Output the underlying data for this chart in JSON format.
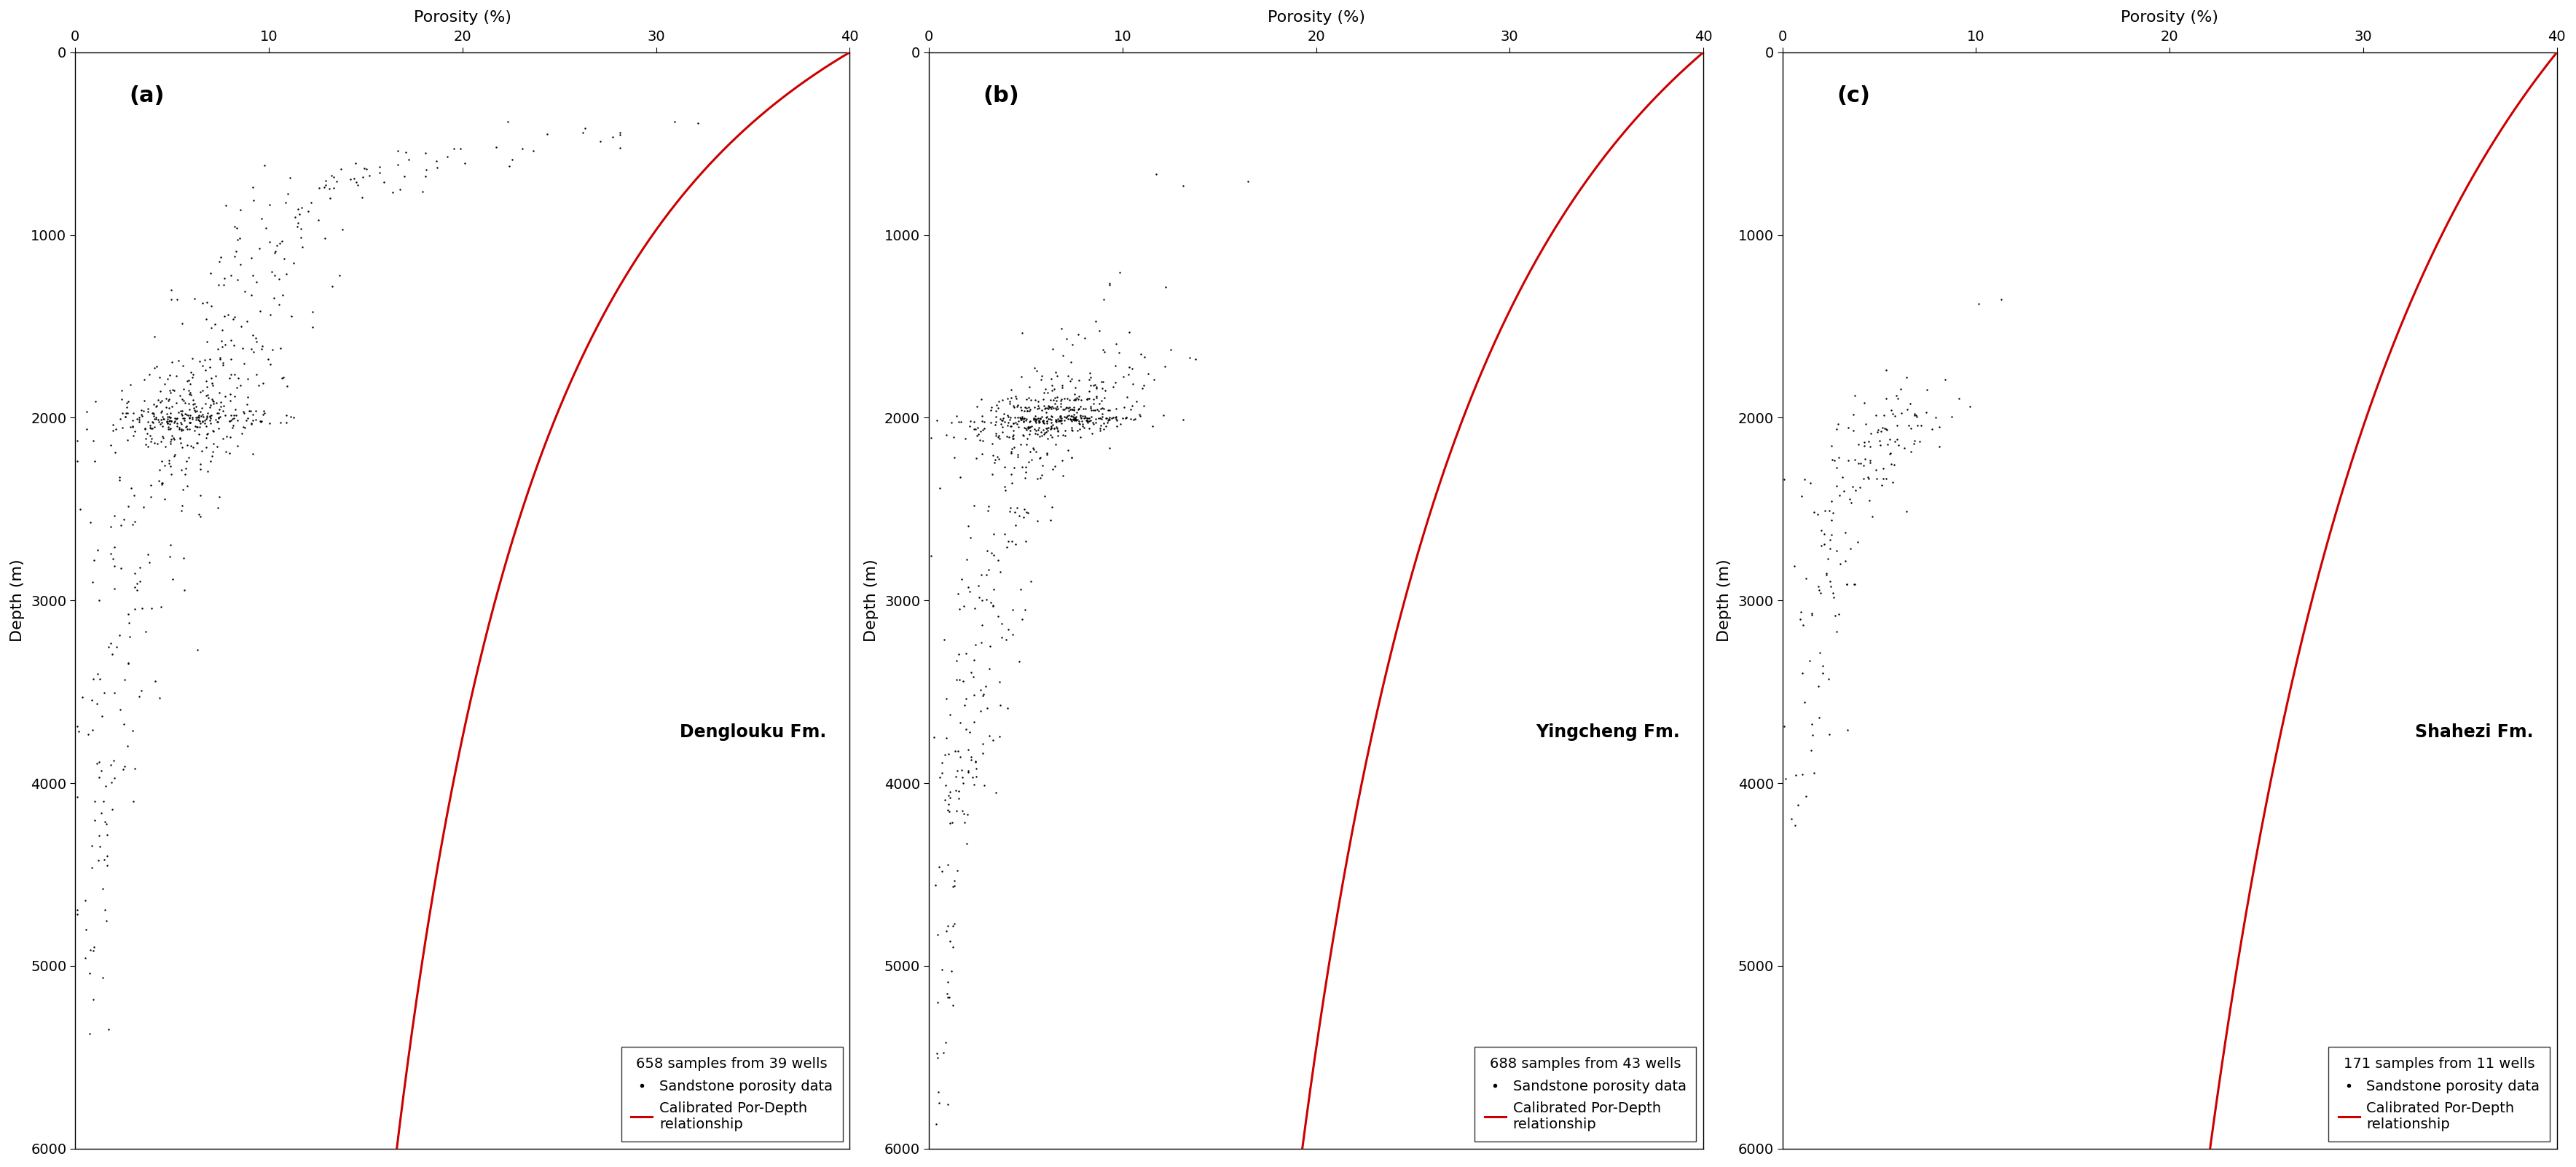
{
  "panels": [
    {
      "label": "(a)",
      "formation": "Denglouku Fm.",
      "samples_text": "658 samples from 39 wells",
      "curve_params": {
        "phi0": 40.0,
        "k": 0.0008
      },
      "scatter_seed": 42,
      "clusters": [
        {
          "depth_mean": 400,
          "depth_std": 80,
          "por_mean": 30,
          "por_std": 4,
          "n": 8
        },
        {
          "depth_mean": 500,
          "depth_std": 60,
          "por_mean": 26,
          "por_std": 3,
          "n": 6
        },
        {
          "depth_mean": 550,
          "depth_std": 40,
          "por_mean": 22,
          "por_std": 2,
          "n": 5
        },
        {
          "depth_mean": 600,
          "depth_std": 40,
          "por_mean": 18,
          "por_std": 2,
          "n": 8
        },
        {
          "depth_mean": 650,
          "depth_std": 30,
          "por_mean": 15,
          "por_std": 2,
          "n": 12
        },
        {
          "depth_mean": 700,
          "depth_std": 30,
          "por_mean": 14,
          "por_std": 2,
          "n": 10
        },
        {
          "depth_mean": 750,
          "depth_std": 30,
          "por_mean": 13,
          "por_std": 2,
          "n": 8
        },
        {
          "depth_mean": 800,
          "depth_std": 30,
          "por_mean": 12,
          "por_std": 2,
          "n": 8
        },
        {
          "depth_mean": 900,
          "depth_std": 40,
          "por_mean": 11,
          "por_std": 2,
          "n": 12
        },
        {
          "depth_mean": 1000,
          "depth_std": 40,
          "por_mean": 10,
          "por_std": 2,
          "n": 12
        },
        {
          "depth_mean": 1100,
          "depth_std": 40,
          "por_mean": 10,
          "por_std": 2,
          "n": 10
        },
        {
          "depth_mean": 1200,
          "depth_std": 40,
          "por_mean": 9,
          "por_std": 2,
          "n": 12
        },
        {
          "depth_mean": 1300,
          "depth_std": 40,
          "por_mean": 9,
          "por_std": 2,
          "n": 10
        },
        {
          "depth_mean": 1400,
          "depth_std": 40,
          "por_mean": 8,
          "por_std": 2,
          "n": 10
        },
        {
          "depth_mean": 1500,
          "depth_std": 40,
          "por_mean": 8,
          "por_std": 2,
          "n": 15
        },
        {
          "depth_mean": 1600,
          "depth_std": 30,
          "por_mean": 8,
          "por_std": 2,
          "n": 15
        },
        {
          "depth_mean": 1700,
          "depth_std": 25,
          "por_mean": 7,
          "por_std": 2,
          "n": 20
        },
        {
          "depth_mean": 1780,
          "depth_std": 20,
          "por_mean": 7,
          "por_std": 2,
          "n": 25
        },
        {
          "depth_mean": 1850,
          "depth_std": 20,
          "por_mean": 7,
          "por_std": 2,
          "n": 30
        },
        {
          "depth_mean": 1920,
          "depth_std": 15,
          "por_mean": 6,
          "por_std": 2,
          "n": 40
        },
        {
          "depth_mean": 1970,
          "depth_std": 15,
          "por_mean": 6,
          "por_std": 2,
          "n": 50
        },
        {
          "depth_mean": 2000,
          "depth_std": 10,
          "por_mean": 6,
          "por_std": 2,
          "n": 60
        },
        {
          "depth_mean": 2020,
          "depth_std": 10,
          "por_mean": 6,
          "por_std": 2,
          "n": 50
        },
        {
          "depth_mean": 2050,
          "depth_std": 10,
          "por_mean": 5,
          "por_std": 2,
          "n": 40
        },
        {
          "depth_mean": 2100,
          "depth_std": 20,
          "por_mean": 5,
          "por_std": 2,
          "n": 30
        },
        {
          "depth_mean": 2150,
          "depth_std": 20,
          "por_mean": 5,
          "por_std": 2,
          "n": 25
        },
        {
          "depth_mean": 2250,
          "depth_std": 30,
          "por_mean": 5,
          "por_std": 2,
          "n": 20
        },
        {
          "depth_mean": 2350,
          "depth_std": 40,
          "por_mean": 4,
          "por_std": 1.5,
          "n": 15
        },
        {
          "depth_mean": 2500,
          "depth_std": 60,
          "por_mean": 4,
          "por_std": 1.5,
          "n": 15
        },
        {
          "depth_mean": 2700,
          "depth_std": 80,
          "por_mean": 3.5,
          "por_std": 1.5,
          "n": 12
        },
        {
          "depth_mean": 2900,
          "depth_std": 80,
          "por_mean": 3,
          "por_std": 1.5,
          "n": 12
        },
        {
          "depth_mean": 3100,
          "depth_std": 80,
          "por_mean": 3,
          "por_std": 1.5,
          "n": 10
        },
        {
          "depth_mean": 3300,
          "depth_std": 80,
          "por_mean": 2.5,
          "por_std": 1,
          "n": 10
        },
        {
          "depth_mean": 3500,
          "depth_std": 80,
          "por_mean": 2.5,
          "por_std": 1.5,
          "n": 12
        },
        {
          "depth_mean": 3700,
          "depth_std": 80,
          "por_mean": 2,
          "por_std": 1,
          "n": 8
        },
        {
          "depth_mean": 3900,
          "depth_std": 80,
          "por_mean": 2,
          "por_std": 1,
          "n": 10
        },
        {
          "depth_mean": 4100,
          "depth_std": 80,
          "por_mean": 1.5,
          "por_std": 0.8,
          "n": 8
        },
        {
          "depth_mean": 4300,
          "depth_std": 80,
          "por_mean": 1.5,
          "por_std": 0.8,
          "n": 8
        },
        {
          "depth_mean": 4600,
          "depth_std": 100,
          "por_mean": 1.2,
          "por_std": 0.6,
          "n": 8
        },
        {
          "depth_mean": 4900,
          "depth_std": 100,
          "por_mean": 1,
          "por_std": 0.5,
          "n": 6
        },
        {
          "depth_mean": 5200,
          "depth_std": 100,
          "por_mean": 1,
          "por_std": 0.4,
          "n": 5
        }
      ]
    },
    {
      "label": "(b)",
      "formation": "Yingcheng Fm.",
      "samples_text": "688 samples from 43 wells",
      "curve_params": {
        "phi0": 40.0,
        "k": 0.00055
      },
      "scatter_seed": 123,
      "clusters": [
        {
          "depth_mean": 700,
          "depth_std": 30,
          "por_mean": 14,
          "por_std": 1.5,
          "n": 3
        },
        {
          "depth_mean": 1300,
          "depth_std": 40,
          "por_mean": 10,
          "por_std": 1.5,
          "n": 5
        },
        {
          "depth_mean": 1500,
          "depth_std": 30,
          "por_mean": 9,
          "por_std": 1.5,
          "n": 8
        },
        {
          "depth_mean": 1650,
          "depth_std": 30,
          "por_mean": 9,
          "por_std": 2,
          "n": 12
        },
        {
          "depth_mean": 1750,
          "depth_std": 25,
          "por_mean": 8,
          "por_std": 2,
          "n": 20
        },
        {
          "depth_mean": 1830,
          "depth_std": 20,
          "por_mean": 8,
          "por_std": 2,
          "n": 30
        },
        {
          "depth_mean": 1900,
          "depth_std": 15,
          "por_mean": 7,
          "por_std": 2,
          "n": 50
        },
        {
          "depth_mean": 1950,
          "depth_std": 10,
          "por_mean": 7,
          "por_std": 2,
          "n": 80
        },
        {
          "depth_mean": 2000,
          "depth_std": 8,
          "por_mean": 7,
          "por_std": 2,
          "n": 100
        },
        {
          "depth_mean": 2020,
          "depth_std": 8,
          "por_mean": 6,
          "por_std": 2,
          "n": 80
        },
        {
          "depth_mean": 2060,
          "depth_std": 10,
          "por_mean": 6,
          "por_std": 2,
          "n": 60
        },
        {
          "depth_mean": 2100,
          "depth_std": 15,
          "por_mean": 5,
          "por_std": 2,
          "n": 40
        },
        {
          "depth_mean": 2200,
          "depth_std": 30,
          "por_mean": 5,
          "por_std": 2,
          "n": 30
        },
        {
          "depth_mean": 2300,
          "depth_std": 40,
          "por_mean": 4.5,
          "por_std": 1.5,
          "n": 20
        },
        {
          "depth_mean": 2500,
          "depth_std": 60,
          "por_mean": 4,
          "por_std": 1.5,
          "n": 20
        },
        {
          "depth_mean": 2700,
          "depth_std": 80,
          "por_mean": 3.5,
          "por_std": 1.5,
          "n": 15
        },
        {
          "depth_mean": 2900,
          "depth_std": 80,
          "por_mean": 3,
          "por_std": 1,
          "n": 15
        },
        {
          "depth_mean": 3100,
          "depth_std": 80,
          "por_mean": 3,
          "por_std": 1,
          "n": 15
        },
        {
          "depth_mean": 3300,
          "depth_std": 80,
          "por_mean": 2.5,
          "por_std": 1,
          "n": 12
        },
        {
          "depth_mean": 3500,
          "depth_std": 80,
          "por_mean": 2.5,
          "por_std": 1,
          "n": 15
        },
        {
          "depth_mean": 3700,
          "depth_std": 80,
          "por_mean": 2,
          "por_std": 1,
          "n": 12
        },
        {
          "depth_mean": 3850,
          "depth_std": 60,
          "por_mean": 2,
          "por_std": 0.8,
          "n": 15
        },
        {
          "depth_mean": 3950,
          "depth_std": 50,
          "por_mean": 1.8,
          "por_std": 0.8,
          "n": 12
        },
        {
          "depth_mean": 4050,
          "depth_std": 50,
          "por_mean": 1.5,
          "por_std": 0.6,
          "n": 10
        },
        {
          "depth_mean": 4200,
          "depth_std": 60,
          "por_mean": 1.5,
          "por_std": 0.6,
          "n": 10
        },
        {
          "depth_mean": 4500,
          "depth_std": 80,
          "por_mean": 1.2,
          "por_std": 0.5,
          "n": 8
        },
        {
          "depth_mean": 4800,
          "depth_std": 100,
          "por_mean": 1,
          "por_std": 0.4,
          "n": 8
        },
        {
          "depth_mean": 5100,
          "depth_std": 100,
          "por_mean": 0.8,
          "por_std": 0.3,
          "n": 6
        },
        {
          "depth_mean": 5400,
          "depth_std": 100,
          "por_mean": 0.7,
          "por_std": 0.3,
          "n": 5
        },
        {
          "depth_mean": 5700,
          "depth_std": 80,
          "por_mean": 0.6,
          "por_std": 0.3,
          "n": 4
        }
      ]
    },
    {
      "label": "(c)",
      "formation": "Shahezi Fm.",
      "samples_text": "171 samples from 11 wells",
      "curve_params": {
        "phi0": 40.0,
        "k": 0.00038
      },
      "scatter_seed": 999,
      "clusters": [
        {
          "depth_mean": 1350,
          "depth_std": 20,
          "por_mean": 11,
          "por_std": 1,
          "n": 2
        },
        {
          "depth_mean": 1800,
          "depth_std": 30,
          "por_mean": 7,
          "por_std": 1.5,
          "n": 5
        },
        {
          "depth_mean": 1900,
          "depth_std": 25,
          "por_mean": 6.5,
          "por_std": 1.5,
          "n": 8
        },
        {
          "depth_mean": 1980,
          "depth_std": 15,
          "por_mean": 6,
          "por_std": 1.5,
          "n": 15
        },
        {
          "depth_mean": 2050,
          "depth_std": 15,
          "por_mean": 5,
          "por_std": 1.5,
          "n": 20
        },
        {
          "depth_mean": 2150,
          "depth_std": 20,
          "por_mean": 5,
          "por_std": 1.5,
          "n": 20
        },
        {
          "depth_mean": 2250,
          "depth_std": 25,
          "por_mean": 4.5,
          "por_std": 1.5,
          "n": 18
        },
        {
          "depth_mean": 2350,
          "depth_std": 30,
          "por_mean": 4,
          "por_std": 1.5,
          "n": 15
        },
        {
          "depth_mean": 2500,
          "depth_std": 50,
          "por_mean": 3.5,
          "por_std": 1.5,
          "n": 15
        },
        {
          "depth_mean": 2700,
          "depth_std": 60,
          "por_mean": 3,
          "por_std": 1,
          "n": 15
        },
        {
          "depth_mean": 2900,
          "depth_std": 60,
          "por_mean": 2.5,
          "por_std": 1,
          "n": 12
        },
        {
          "depth_mean": 3100,
          "depth_std": 60,
          "por_mean": 2,
          "por_std": 0.8,
          "n": 10
        },
        {
          "depth_mean": 3400,
          "depth_std": 60,
          "por_mean": 1.8,
          "por_std": 0.7,
          "n": 8
        },
        {
          "depth_mean": 3700,
          "depth_std": 60,
          "por_mean": 1.5,
          "por_std": 0.6,
          "n": 6
        },
        {
          "depth_mean": 3900,
          "depth_std": 60,
          "por_mean": 1.2,
          "por_std": 0.5,
          "n": 5
        },
        {
          "depth_mean": 4100,
          "depth_std": 60,
          "por_mean": 1,
          "por_std": 0.4,
          "n": 4
        }
      ]
    }
  ],
  "xlabel": "Porosity (%)",
  "ylabel": "Depth (m)",
  "xlim": [
    0,
    40
  ],
  "ylim_bottom": 6000,
  "ylim_top": 0,
  "xticks": [
    0,
    10,
    20,
    30,
    40
  ],
  "yticks": [
    0,
    1000,
    2000,
    3000,
    4000,
    5000,
    6000
  ],
  "curve_color": "#cc0000",
  "scatter_color": "#000000",
  "scatter_size": 12,
  "curve_linewidth": 2.2,
  "legend_fontsize": 14,
  "axis_label_fontsize": 16,
  "tick_fontsize": 14,
  "label_fontsize": 22,
  "formation_fontsize": 17,
  "samples_text_fontsize": 14
}
